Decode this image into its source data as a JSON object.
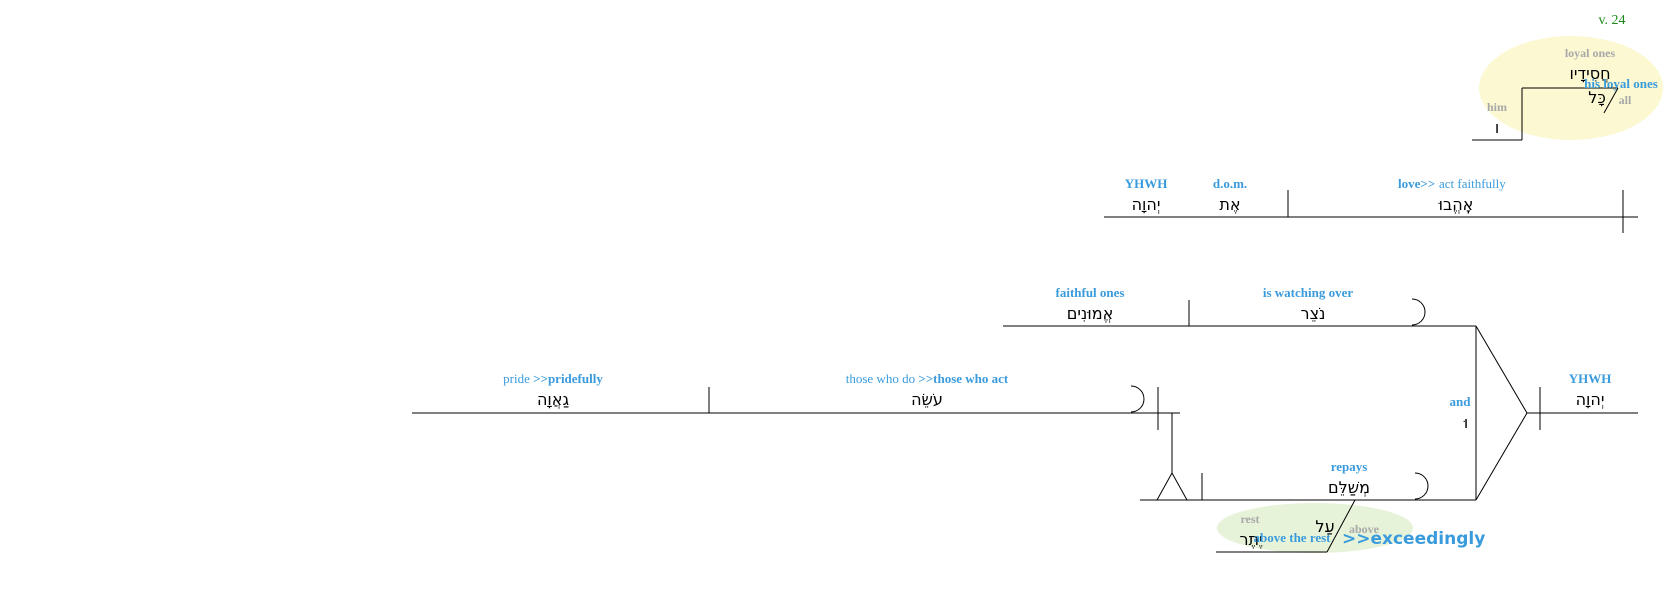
{
  "verse_label": "v. 24",
  "clause1": {
    "subject": {
      "gloss": "YHWH",
      "hebrew": "יְהוָה"
    },
    "marker": {
      "gloss": "d.o.m.",
      "hebrew": "אֶת"
    },
    "verb": {
      "gloss_bold": "love>>",
      "gloss": " act faithfully",
      "hebrew": "אֶֽהֱבוּ"
    },
    "vocative": {
      "loyal_ones": {
        "gray_gloss": "loyal ones",
        "hebrew": "חֲסִידָיו"
      },
      "his_loyal_ones": "his loyal ones",
      "all": {
        "gray_gloss": "all",
        "hebrew": "כָּל"
      },
      "him": {
        "gray_gloss": "him",
        "hebrew": "ו"
      }
    }
  },
  "clause2": {
    "subject": {
      "gloss": "YHWH",
      "hebrew": "יְהוָה"
    },
    "conj": {
      "gloss": "and",
      "hebrew": "וּ"
    },
    "top": {
      "verb": {
        "gloss": "is watching over",
        "hebrew": "נֹצֵר"
      },
      "object": {
        "gloss": "faithful ones",
        "hebrew": "אֱמוּנִים"
      }
    },
    "bottom": {
      "verb": {
        "gloss": "repays",
        "hebrew": "מְשַׁלֵּם"
      },
      "object": {
        "gloss": "those who do ",
        "gloss_bold": ">>those who act",
        "hebrew": "עֹשֵׂה"
      },
      "object2": {
        "gloss": "pride ",
        "gloss_bold": ">>pridefully",
        "hebrew": "גַאֲוָה"
      },
      "modifier": {
        "above": {
          "gray_gloss": "above",
          "hebrew": "עַל"
        },
        "rest": {
          "gray_gloss": "rest",
          "hebrew": "יֶתֶר"
        },
        "above_the_rest": "above the rest",
        "exceedingly": ">>exceedingly"
      }
    }
  },
  "colors": {
    "gloss": "#3a9bdc",
    "gray_gloss": "#a8a8a8",
    "verse": "#1a8a1a",
    "yellow_bubble": "#fbf8d2",
    "green_bubble": "#e7f3d9"
  }
}
